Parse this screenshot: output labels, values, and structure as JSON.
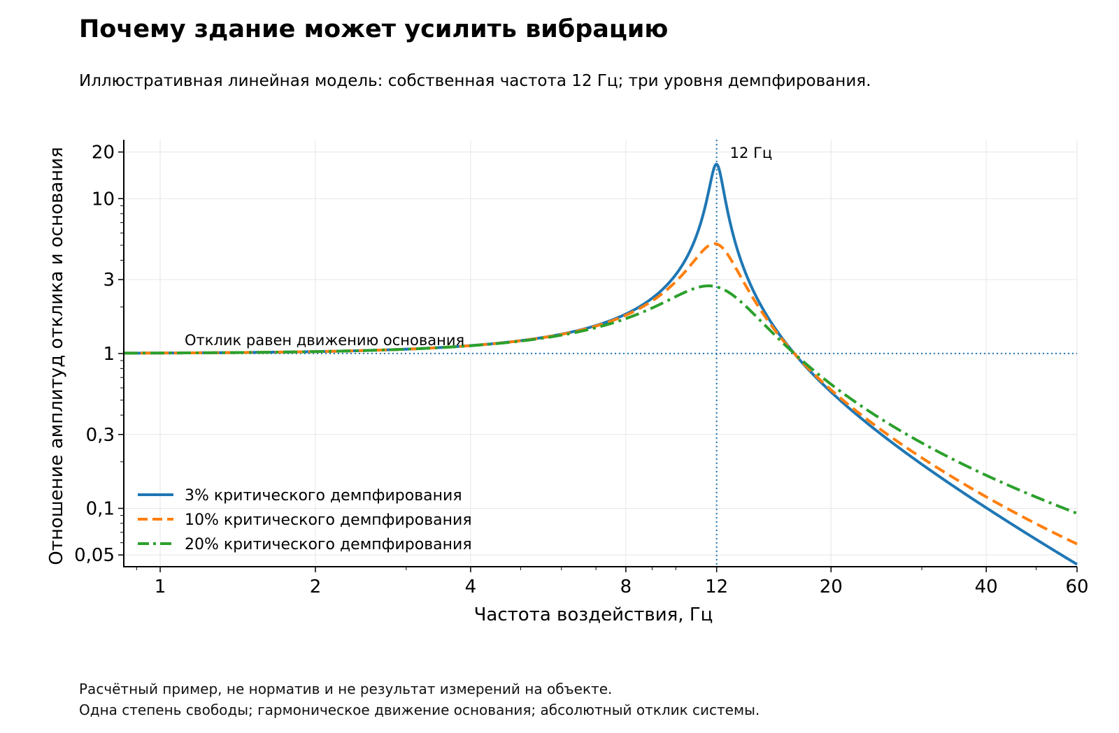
{
  "chart_data": {
    "type": "line",
    "title": "Почему здание может усилить вибрацию",
    "subtitle": "Иллюстративная линейная модель: собственная частота 12 Гц; три уровня демпфирования.",
    "xlabel": "Частота воздействия, Гц",
    "ylabel": "Отношение амплитуд отклика и основания",
    "x_scale": "log",
    "y_scale": "log",
    "xlim": [
      0.85,
      60
    ],
    "ylim": [
      0.042,
      24
    ],
    "x_ticks": [
      1,
      2,
      4,
      8,
      12,
      20,
      40,
      60
    ],
    "x_tick_labels": [
      "1",
      "2",
      "4",
      "8",
      "12",
      "20",
      "40",
      "60"
    ],
    "y_ticks": [
      0.05,
      0.1,
      0.3,
      1,
      3,
      10,
      20
    ],
    "y_tick_labels": [
      "0,05",
      "0,1",
      "0,3",
      "1",
      "3",
      "10",
      "20"
    ],
    "grid": true,
    "natural_frequency": 12,
    "series": [
      {
        "name": "3% критического демпфирования",
        "damping": 0.03,
        "color": "#1f77b4",
        "style": "solid",
        "x": [
          0.85,
          1,
          2,
          4,
          6,
          8,
          10,
          11,
          12,
          13,
          15,
          16.97,
          20,
          30,
          40,
          60
        ],
        "y": [
          1.005,
          1.007,
          1.029,
          1.125,
          1.333,
          1.8,
          3.27,
          5.73,
          16.7,
          3.84,
          1.27,
          1.0,
          0.565,
          0.19,
          0.099,
          0.043
        ]
      },
      {
        "name": "10% критического демпфирования",
        "damping": 0.1,
        "color": "#ff7f0e",
        "style": "dashed",
        "x": [
          0.85,
          1,
          2,
          4,
          6,
          8,
          10,
          11,
          12,
          13,
          15,
          16.97,
          20,
          30,
          40,
          60
        ],
        "y": [
          1.005,
          1.007,
          1.029,
          1.125,
          1.33,
          1.78,
          3.1,
          4.4,
          5.1,
          3.25,
          1.28,
          1.0,
          0.59,
          0.23,
          0.125,
          0.06
        ]
      },
      {
        "name": "20% критического демпфирования",
        "damping": 0.2,
        "color": "#2ca02c",
        "style": "dash-dot",
        "x": [
          0.85,
          1,
          2,
          4,
          6,
          8,
          10,
          11,
          12,
          13,
          15,
          16.97,
          20,
          30,
          40,
          60
        ],
        "y": [
          1.005,
          1.007,
          1.028,
          1.12,
          1.32,
          1.68,
          2.39,
          2.66,
          2.7,
          2.24,
          1.3,
          1.0,
          0.65,
          0.29,
          0.18,
          0.094
        ]
      }
    ],
    "annotations": [
      {
        "text": "12 Гц",
        "x": 12
      },
      {
        "text": "Отклик равен движению основания",
        "y": 1
      }
    ],
    "legend_position": "lower-left"
  },
  "footnotes": [
    "Расчётный пример, не норматив и не результат измерений на объекте.",
    "Одна степень свободы; гармоническое движение основания; абсолютный отклик системы."
  ]
}
